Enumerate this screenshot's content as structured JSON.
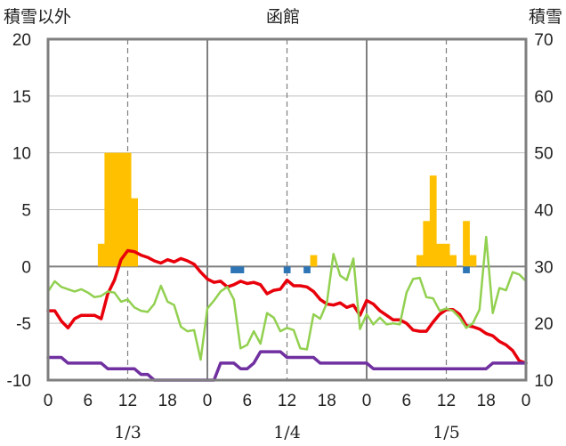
{
  "chart_data": {
    "type": "bar+line",
    "title": "函館",
    "left_axis_label": "積雪以外",
    "right_axis_label": "積雪",
    "left_ylim": [
      -10,
      20
    ],
    "left_yticks": [
      20,
      15,
      10,
      5,
      0,
      -5,
      -10
    ],
    "left_ytick_labels": [
      "20",
      "15",
      "10",
      "5",
      "0",
      "-5",
      "-10"
    ],
    "right_ylim": [
      10,
      70
    ],
    "right_yticks": [
      70,
      60,
      50,
      40,
      30,
      20,
      10
    ],
    "right_ytick_labels": [
      "70",
      "60",
      "50",
      "40",
      "30",
      "20",
      "10"
    ],
    "x_range_hours": [
      0,
      72
    ],
    "x_ticks_hours": [
      0,
      6,
      12,
      18,
      24,
      30,
      36,
      42,
      48,
      54,
      60,
      66,
      72
    ],
    "x_tick_labels": [
      "0",
      "6",
      "12",
      "18",
      "0",
      "6",
      "12",
      "18",
      "0",
      "6",
      "12",
      "18",
      "0"
    ],
    "day_labels": [
      {
        "hour": 12,
        "label": "1/3"
      },
      {
        "hour": 36,
        "label": "1/4"
      },
      {
        "hour": 60,
        "label": "1/5"
      }
    ],
    "day_separators_hours": [
      24,
      48
    ],
    "dashed_gridlines_hours": [
      12,
      36,
      60
    ],
    "colors": {
      "precip_bar": "#FFC000",
      "sunshine_bar": "#2E75B6",
      "temperature": "#E8000B",
      "humidity_or_wind": "#92D050",
      "snow_depth": "#7030A0",
      "axis": "#7f7f7f"
    },
    "series": [
      {
        "type": "bar",
        "color_key": "precip_bar",
        "axis": "left",
        "x_start": [
          7.5,
          8.5,
          9.5,
          10.5,
          11.5,
          12.5,
          39.5,
          55.5,
          56.5,
          57.5,
          58.5,
          59.5,
          60.5,
          62.5,
          63.5
        ],
        "values": [
          2,
          10,
          10,
          10,
          10,
          6,
          1,
          1,
          4,
          8,
          2,
          2,
          1,
          4,
          1
        ]
      },
      {
        "type": "bar",
        "color_key": "sunshine_bar",
        "axis": "left",
        "x_start": [
          27.5,
          28.5,
          35.5,
          38.5,
          62.5
        ],
        "values": [
          -0.6,
          -0.6,
          -0.6,
          -0.6,
          -0.6
        ]
      },
      {
        "type": "line",
        "color_key": "temperature",
        "axis": "left",
        "x": [
          0,
          1,
          2,
          3,
          4,
          5,
          6,
          7,
          8,
          9,
          10,
          11,
          12,
          13,
          14,
          15,
          16,
          17,
          18,
          19,
          20,
          21,
          22,
          23,
          24,
          25,
          26,
          27,
          28,
          29,
          30,
          31,
          32,
          33,
          34,
          35,
          36,
          37,
          38,
          39,
          40,
          41,
          42,
          43,
          44,
          45,
          46,
          47,
          48,
          49,
          50,
          51,
          52,
          53,
          54,
          55,
          56,
          57,
          58,
          59,
          60,
          61,
          62,
          63,
          64,
          65,
          66,
          67,
          68,
          69,
          70,
          71,
          72
        ],
        "values": [
          -3.9,
          -3.9,
          -4.8,
          -5.4,
          -4.6,
          -4.3,
          -4.3,
          -4.3,
          -4.6,
          -2.4,
          -1.2,
          0.6,
          1.4,
          1.3,
          1.0,
          0.8,
          0.5,
          0.3,
          0.6,
          0.4,
          0.7,
          0.5,
          0.2,
          -0.5,
          -1.1,
          -1.4,
          -1.3,
          -1.8,
          -1.6,
          -1.3,
          -1.5,
          -1.4,
          -1.6,
          -2.4,
          -2.1,
          -2.0,
          -1.2,
          -1.7,
          -1.7,
          -1.8,
          -2.2,
          -2.9,
          -3.3,
          -3.4,
          -3.2,
          -3.6,
          -3.4,
          -4.3,
          -3.0,
          -3.3,
          -3.9,
          -4.3,
          -4.7,
          -4.7,
          -5.0,
          -5.6,
          -5.7,
          -5.7,
          -4.9,
          -4.2,
          -3.8,
          -3.8,
          -4.2,
          -5.2,
          -5.3,
          -5.5,
          -5.9,
          -6.1,
          -6.6,
          -6.9,
          -7.4,
          -8.3,
          -8.5
        ]
      },
      {
        "type": "line",
        "color_key": "humidity_or_wind",
        "axis": "left",
        "x": [
          0,
          1,
          2,
          3,
          4,
          5,
          6,
          7,
          8,
          9,
          10,
          11,
          12,
          13,
          14,
          15,
          16,
          17,
          18,
          19,
          20,
          21,
          22,
          23,
          24,
          25,
          26,
          27,
          28,
          29,
          30,
          31,
          32,
          33,
          34,
          35,
          36,
          37,
          38,
          39,
          40,
          41,
          42,
          43,
          44,
          45,
          46,
          47,
          48,
          49,
          50,
          51,
          52,
          53,
          54,
          55,
          56,
          57,
          58,
          59,
          60,
          61,
          62,
          63,
          64,
          65,
          66,
          67,
          68,
          69,
          70,
          71,
          72
        ],
        "values": [
          -2.2,
          -1.3,
          -1.8,
          -2.0,
          -2.2,
          -2.0,
          -2.3,
          -2.7,
          -2.6,
          -2.2,
          -2.3,
          -3.1,
          -2.9,
          -3.6,
          -3.9,
          -4.0,
          -3.3,
          -1.7,
          -3.1,
          -3.4,
          -5.3,
          -5.7,
          -5.6,
          -8.2,
          -3.7,
          -3.0,
          -2.2,
          -1.8,
          -2.9,
          -7.2,
          -6.9,
          -5.7,
          -6.8,
          -4.1,
          -4.5,
          -5.7,
          -5.4,
          -5.6,
          -7.2,
          -7.3,
          -4.2,
          -4.6,
          -3.2,
          1.1,
          -0.8,
          -1.2,
          0.7,
          -5.5,
          -4.2,
          -5.1,
          -4.5,
          -5.1,
          -5.0,
          -5.1,
          -2.3,
          -1.1,
          -1.0,
          -2.7,
          -2.8,
          -3.9,
          -3.7,
          -3.9,
          -4.5,
          -5.4,
          -5.0,
          -3.8,
          2.6,
          -4.1,
          -1.9,
          -2.1,
          -0.5,
          -0.7,
          -1.3
        ]
      },
      {
        "type": "line",
        "color_key": "snow_depth",
        "axis": "right",
        "x": [
          0,
          2,
          3,
          8,
          9,
          13,
          14,
          15,
          16,
          17,
          18,
          19,
          20,
          21,
          22,
          23,
          24,
          25,
          26,
          27,
          28,
          29,
          30,
          31,
          32,
          33,
          34,
          35,
          36,
          37,
          38,
          39,
          40,
          41,
          42,
          43,
          44,
          45,
          46,
          47,
          48,
          49,
          50,
          51,
          52,
          53,
          54,
          55,
          56,
          57,
          58,
          59,
          60,
          61,
          62,
          63,
          64,
          65,
          66,
          67,
          68,
          69,
          70,
          71,
          72
        ],
        "values": [
          14,
          14,
          13,
          13,
          12,
          12,
          11,
          11,
          10,
          10,
          10,
          10,
          10,
          10,
          10,
          10,
          10,
          10,
          13,
          13,
          13,
          12,
          12,
          13,
          15,
          15,
          15,
          15,
          14,
          14,
          14,
          14,
          14,
          13,
          13,
          13,
          13,
          13,
          13,
          13,
          13,
          12,
          12,
          12,
          12,
          12,
          12,
          12,
          12,
          12,
          12,
          12,
          12,
          12,
          12,
          12,
          12,
          12,
          12,
          13,
          13,
          13,
          13,
          13,
          13
        ]
      }
    ]
  }
}
